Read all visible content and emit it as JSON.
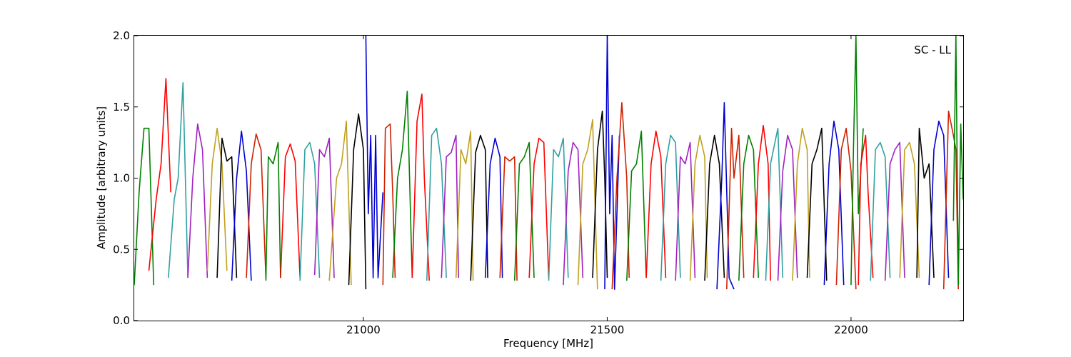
{
  "chart_data": {
    "type": "line",
    "title": "",
    "xlabel": "Frequency [MHz]",
    "ylabel": "Amplitude [arbitrary units]",
    "annotation": "SC - LL",
    "xlim": [
      20530,
      22230
    ],
    "ylim": [
      0.0,
      2.0
    ],
    "grid": false,
    "xticks": [
      21000,
      21500,
      22000
    ],
    "yticks": [
      0.0,
      0.5,
      1.0,
      1.5,
      2.0
    ],
    "xtick_labels": [
      "21000",
      "21500",
      "22000"
    ],
    "ytick_labels": [
      "0.0",
      "0.5",
      "1.0",
      "1.5",
      "2.0"
    ],
    "colors": [
      "#008000",
      "#ff0000",
      "#30a0a0",
      "#a020c0",
      "#c0a020",
      "#000000",
      "#0000d0",
      "#d02000"
    ],
    "series": [
      {
        "x": [
          20530,
          20540,
          20550,
          20560,
          20570
        ],
        "y": [
          0.25,
          0.9,
          1.35,
          1.35,
          0.25
        ]
      },
      {
        "x": [
          20560,
          20575,
          20585,
          20595,
          20605
        ],
        "y": [
          0.35,
          0.85,
          1.1,
          1.7,
          0.9
        ]
      },
      {
        "x": [
          20600,
          20612,
          20620,
          20630,
          20640
        ],
        "y": [
          0.3,
          0.85,
          1.0,
          1.67,
          0.3
        ]
      },
      {
        "x": [
          20640,
          20650,
          20660,
          20670,
          20680
        ],
        "y": [
          0.3,
          1.0,
          1.38,
          1.2,
          0.3
        ]
      },
      {
        "x": [
          20680,
          20690,
          20700,
          20710,
          20720
        ],
        "y": [
          0.35,
          1.1,
          1.35,
          1.1,
          0.35
        ]
      },
      {
        "x": [
          20700,
          20710,
          20720,
          20730,
          20740
        ],
        "y": [
          0.3,
          1.28,
          1.12,
          1.15,
          0.3
        ]
      },
      {
        "x": [
          20730,
          20740,
          20750,
          20760,
          20770
        ],
        "y": [
          0.28,
          1.0,
          1.33,
          1.05,
          0.28
        ]
      },
      {
        "x": [
          20760,
          20770,
          20780,
          20790,
          20800
        ],
        "y": [
          0.3,
          1.1,
          1.31,
          1.2,
          0.3
        ]
      },
      {
        "x": [
          20800,
          20805,
          20815,
          20825,
          20830
        ],
        "y": [
          0.28,
          1.15,
          1.1,
          1.25,
          0.3
        ]
      },
      {
        "x": [
          20830,
          20840,
          20850,
          20860,
          20870
        ],
        "y": [
          0.3,
          1.15,
          1.24,
          1.12,
          0.3
        ]
      },
      {
        "x": [
          20870,
          20880,
          20890,
          20900,
          20910
        ],
        "y": [
          0.28,
          1.2,
          1.25,
          1.1,
          0.3
        ]
      },
      {
        "x": [
          20900,
          20910,
          20920,
          20930,
          20940
        ],
        "y": [
          0.32,
          1.2,
          1.15,
          1.28,
          0.3
        ]
      },
      {
        "x": [
          20930,
          20945,
          20955,
          20965,
          20975
        ],
        "y": [
          0.28,
          1.0,
          1.1,
          1.4,
          0.25
        ]
      },
      {
        "x": [
          20970,
          20980,
          20990,
          21000,
          21005
        ],
        "y": [
          0.25,
          1.2,
          1.45,
          1.2,
          0.22
        ]
      },
      {
        "x": [
          21005,
          21010,
          21015,
          21020,
          21025,
          21030,
          21040
        ],
        "y": [
          2.0,
          0.75,
          1.3,
          0.3,
          1.3,
          0.3,
          0.9
        ]
      },
      {
        "x": [
          21040,
          21045,
          21055,
          21060,
          21065
        ],
        "y": [
          0.25,
          1.35,
          1.38,
          0.9,
          0.3
        ]
      },
      {
        "x": [
          21060,
          21070,
          21080,
          21090,
          21100
        ],
        "y": [
          0.3,
          1.0,
          1.2,
          1.61,
          0.3
        ]
      },
      {
        "x": [
          21100,
          21110,
          21120,
          21125,
          21135
        ],
        "y": [
          0.3,
          1.4,
          1.59,
          1.0,
          0.28
        ]
      },
      {
        "x": [
          21130,
          21140,
          21150,
          21160,
          21170
        ],
        "y": [
          0.28,
          1.3,
          1.35,
          1.1,
          0.3
        ]
      },
      {
        "x": [
          21160,
          21170,
          21180,
          21190,
          21195
        ],
        "y": [
          0.3,
          1.15,
          1.18,
          1.3,
          0.3
        ]
      },
      {
        "x": [
          21190,
          21200,
          21210,
          21220,
          21225
        ],
        "y": [
          0.3,
          1.2,
          1.1,
          1.33,
          0.28
        ]
      },
      {
        "x": [
          21220,
          21230,
          21240,
          21250,
          21255
        ],
        "y": [
          0.28,
          1.18,
          1.3,
          1.2,
          0.3
        ]
      },
      {
        "x": [
          21250,
          21260,
          21270,
          21280,
          21285
        ],
        "y": [
          0.3,
          1.1,
          1.28,
          1.15,
          0.3
        ]
      },
      {
        "x": [
          21280,
          21290,
          21300,
          21310,
          21315
        ],
        "y": [
          0.3,
          1.15,
          1.12,
          1.15,
          0.28
        ]
      },
      {
        "x": [
          21310,
          21320,
          21330,
          21340,
          21350
        ],
        "y": [
          0.28,
          1.1,
          1.15,
          1.25,
          0.3
        ]
      },
      {
        "x": [
          21340,
          21350,
          21360,
          21370,
          21380
        ],
        "y": [
          0.3,
          1.1,
          1.28,
          1.25,
          0.3
        ]
      },
      {
        "x": [
          21380,
          21390,
          21400,
          21410,
          21420
        ],
        "y": [
          0.28,
          1.2,
          1.15,
          1.28,
          0.3
        ]
      },
      {
        "x": [
          21410,
          21420,
          21430,
          21440,
          21450
        ],
        "y": [
          0.25,
          1.05,
          1.25,
          1.2,
          0.3
        ]
      },
      {
        "x": [
          21440,
          21450,
          21460,
          21470,
          21480
        ],
        "y": [
          0.25,
          1.1,
          1.2,
          1.41,
          0.22
        ]
      },
      {
        "x": [
          21470,
          21480,
          21490,
          21495,
          21500
        ],
        "y": [
          0.3,
          1.2,
          1.47,
          1.0,
          0.3
        ]
      },
      {
        "x": [
          21495,
          21500,
          21505,
          21510,
          21515,
          21525
        ],
        "y": [
          0.22,
          2.0,
          0.75,
          1.3,
          0.22,
          1.3
        ]
      },
      {
        "x": [
          21510,
          21520,
          21530,
          21540,
          21545
        ],
        "y": [
          0.22,
          1.0,
          1.53,
          1.0,
          0.3
        ]
      },
      {
        "x": [
          21540,
          21550,
          21560,
          21570,
          21580
        ],
        "y": [
          0.28,
          1.05,
          1.1,
          1.33,
          0.3
        ]
      },
      {
        "x": [
          21580,
          21590,
          21600,
          21610,
          21620
        ],
        "y": [
          0.3,
          1.1,
          1.33,
          1.15,
          0.3
        ]
      },
      {
        "x": [
          21610,
          21620,
          21630,
          21640,
          21650
        ],
        "y": [
          0.28,
          1.1,
          1.3,
          1.25,
          0.3
        ]
      },
      {
        "x": [
          21640,
          21650,
          21660,
          21670,
          21680
        ],
        "y": [
          0.28,
          1.15,
          1.1,
          1.25,
          0.3
        ]
      },
      {
        "x": [
          21670,
          21680,
          21690,
          21700,
          21705
        ],
        "y": [
          0.28,
          1.1,
          1.3,
          1.15,
          0.3
        ]
      },
      {
        "x": [
          21700,
          21710,
          21720,
          21730,
          21740
        ],
        "y": [
          0.28,
          1.1,
          1.3,
          1.1,
          0.3
        ]
      },
      {
        "x": [
          21725,
          21735,
          21740,
          21750,
          21760
        ],
        "y": [
          0.22,
          1.0,
          1.53,
          0.3,
          0.22
        ]
      },
      {
        "x": [
          21745,
          21755,
          21760,
          21770,
          21780
        ],
        "y": [
          0.22,
          1.35,
          1.0,
          1.3,
          0.3
        ]
      },
      {
        "x": [
          21770,
          21780,
          21790,
          21800,
          21810
        ],
        "y": [
          0.28,
          1.1,
          1.3,
          1.2,
          0.3
        ]
      },
      {
        "x": [
          21800,
          21810,
          21820,
          21830,
          21835
        ],
        "y": [
          0.3,
          1.1,
          1.37,
          1.1,
          0.28
        ]
      },
      {
        "x": [
          21825,
          21835,
          21845,
          21850,
          21860
        ],
        "y": [
          0.28,
          1.1,
          1.27,
          1.35,
          0.3
        ]
      },
      {
        "x": [
          21850,
          21860,
          21870,
          21880,
          21890
        ],
        "y": [
          0.28,
          1.05,
          1.3,
          1.2,
          0.3
        ]
      },
      {
        "x": [
          21880,
          21890,
          21900,
          21910,
          21915
        ],
        "y": [
          0.28,
          1.1,
          1.35,
          1.2,
          0.3
        ]
      },
      {
        "x": [
          21910,
          21920,
          21930,
          21940,
          21950
        ],
        "y": [
          0.3,
          1.1,
          1.2,
          1.35,
          0.28
        ]
      },
      {
        "x": [
          21945,
          21955,
          21965,
          21975,
          21985
        ],
        "y": [
          0.25,
          1.1,
          1.4,
          1.2,
          0.25
        ]
      },
      {
        "x": [
          21970,
          21980,
          21990,
          22000,
          22010
        ],
        "y": [
          0.25,
          1.2,
          1.35,
          1.05,
          0.22
        ]
      },
      {
        "x": [
          22000,
          22005,
          22010,
          22015,
          22025
        ],
        "y": [
          0.25,
          1.2,
          2.0,
          0.75,
          1.35
        ]
      },
      {
        "x": [
          22015,
          22020,
          22030,
          22035,
          22045
        ],
        "y": [
          0.25,
          1.1,
          1.3,
          0.9,
          0.3
        ]
      },
      {
        "x": [
          22040,
          22050,
          22060,
          22070,
          22080
        ],
        "y": [
          0.28,
          1.2,
          1.25,
          1.15,
          0.3
        ]
      },
      {
        "x": [
          22070,
          22080,
          22090,
          22100,
          22110
        ],
        "y": [
          0.28,
          1.1,
          1.2,
          1.25,
          0.3
        ]
      },
      {
        "x": [
          22100,
          22110,
          22120,
          22130,
          22140
        ],
        "y": [
          0.3,
          1.2,
          1.25,
          1.1,
          0.3
        ]
      },
      {
        "x": [
          22135,
          22140,
          22150,
          22160,
          22170
        ],
        "y": [
          0.3,
          1.35,
          1.0,
          1.1,
          0.3
        ]
      },
      {
        "x": [
          22160,
          22170,
          22180,
          22190,
          22200
        ],
        "y": [
          0.25,
          1.2,
          1.4,
          1.3,
          0.3
        ]
      },
      {
        "x": [
          22190,
          22200,
          22210,
          22215,
          22220
        ],
        "y": [
          0.22,
          1.47,
          1.3,
          1.2,
          0.22
        ]
      },
      {
        "x": [
          22210,
          22215,
          22220,
          22225,
          22230
        ],
        "y": [
          0.7,
          2.0,
          0.25,
          1.38,
          0.85
        ]
      }
    ]
  }
}
